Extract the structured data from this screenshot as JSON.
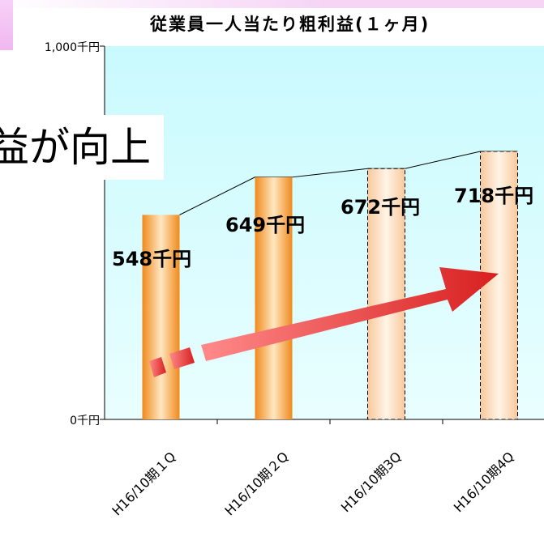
{
  "chart_data": {
    "type": "bar",
    "title": "従業員一人当たり粗利益(１ヶ月)",
    "categories": [
      "H16/10期１Q",
      "H16/10期２Q",
      "H16/10期3Q",
      "H16/10期4Q"
    ],
    "values": [
      548,
      649,
      672,
      718
    ],
    "data_labels": [
      "548千円",
      "649千円",
      "672千円",
      "718千円"
    ],
    "forecast_flags": [
      false,
      false,
      true,
      true
    ],
    "ylim": [
      0,
      1000
    ],
    "yticks": [
      {
        "value": 0,
        "label": "0千円"
      },
      {
        "value": 1000,
        "label": "1,000千円"
      }
    ],
    "xlabel": "",
    "ylabel": "",
    "trend_line": true,
    "legend": "none",
    "colors": {
      "plot_background": "#ccffff",
      "bar_actual_edge": "#f08a1c",
      "bar_actual_center": "#ffe6c0",
      "bar_forecast_edge": "#f8c89c",
      "bar_forecast_center": "#fff4e6",
      "arrow": "#e03030"
    }
  },
  "callout": {
    "text": "益が向上"
  }
}
